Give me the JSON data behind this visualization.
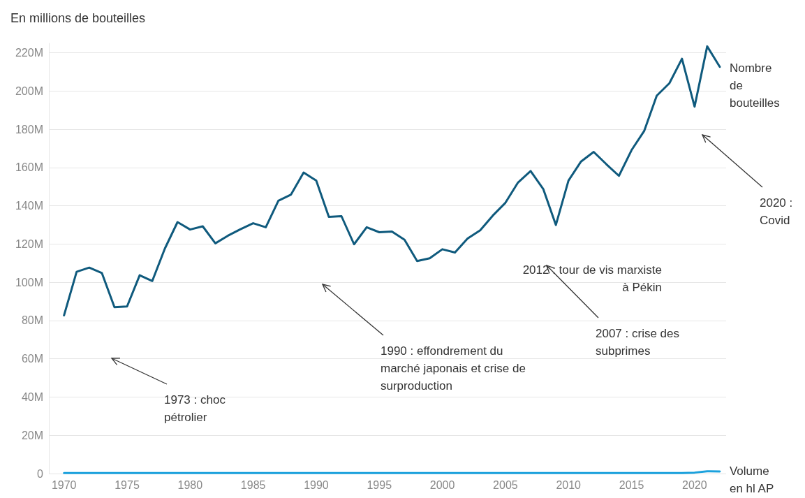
{
  "chart_data": {
    "type": "line",
    "title": "En millions de bouteilles",
    "x": [
      1970,
      1971,
      1972,
      1973,
      1974,
      1975,
      1976,
      1977,
      1978,
      1979,
      1980,
      1981,
      1982,
      1983,
      1984,
      1985,
      1986,
      1987,
      1988,
      1989,
      1990,
      1991,
      1992,
      1993,
      1994,
      1995,
      1996,
      1997,
      1998,
      1999,
      2000,
      2001,
      2002,
      2003,
      2004,
      2005,
      2006,
      2007,
      2008,
      2009,
      2010,
      2011,
      2012,
      2013,
      2014,
      2015,
      2016,
      2017,
      2018,
      2019,
      2020,
      2021,
      2022
    ],
    "series": [
      {
        "name": "Nombre de bouteilles",
        "color": "#0f5a7d",
        "values": [
          82.7,
          105.5,
          107.7,
          104.9,
          87,
          87.4,
          103.7,
          100.7,
          117.7,
          131.5,
          127.6,
          129.3,
          120.4,
          124.4,
          127.8,
          130.9,
          128.8,
          142.7,
          145.9,
          157.4,
          153.2,
          134.2,
          134.6,
          119.9,
          128.8,
          126.2,
          126.6,
          122.3,
          111.1,
          112.6,
          117.3,
          115.6,
          122.9,
          127.2,
          134.9,
          141.6,
          152.2,
          158.2,
          148.8,
          130,
          153.2,
          163.2,
          168.2,
          161.8,
          155.7,
          169.1,
          179.1,
          197.6,
          204.1,
          216.9,
          191.9,
          223.4,
          212.7
        ]
      },
      {
        "name": "Volume en hl AP",
        "color": "#1ba1dd",
        "values": [
          0.3,
          0.3,
          0.3,
          0.3,
          0.3,
          0.3,
          0.3,
          0.3,
          0.3,
          0.3,
          0.3,
          0.3,
          0.3,
          0.3,
          0.3,
          0.3,
          0.3,
          0.3,
          0.3,
          0.3,
          0.3,
          0.3,
          0.3,
          0.3,
          0.3,
          0.3,
          0.3,
          0.3,
          0.3,
          0.3,
          0.3,
          0.3,
          0.3,
          0.3,
          0.3,
          0.3,
          0.3,
          0.3,
          0.3,
          0.3,
          0.3,
          0.3,
          0.3,
          0.3,
          0.3,
          0.3,
          0.3,
          0.3,
          0.3,
          0.3,
          0.5,
          1.2,
          1.1
        ]
      }
    ],
    "xlim": [
      1968.8,
      2022.5
    ],
    "xticks": [
      1970,
      1975,
      1980,
      1985,
      1990,
      1995,
      2000,
      2005,
      2010,
      2015,
      2020
    ],
    "ylim": [
      0,
      225
    ],
    "yticks": [
      0,
      {
        "value": 20,
        "label": "20M"
      },
      {
        "value": 40,
        "label": "40M"
      },
      {
        "value": 60,
        "label": "60M"
      },
      {
        "value": 80,
        "label": "80M"
      },
      {
        "value": 100,
        "label": "100M"
      },
      {
        "value": 120,
        "label": "120M"
      },
      {
        "value": 140,
        "label": "140M"
      },
      {
        "value": 160,
        "label": "160M"
      },
      {
        "value": 180,
        "label": "180M"
      },
      {
        "value": 200,
        "label": "200M"
      },
      {
        "value": 220,
        "label": "220M"
      }
    ],
    "grid": "y",
    "marker": "none",
    "line_style": "solid",
    "annotations": [
      "1973 : choc\npétrolier",
      "1990 : effondrement du\nmarché japonais et crise de\nsurproduction",
      "2007 : crise des\nsubprimes",
      "2020 :\nCovid",
      "2012 : tour de vis marxiste\nà Pékin"
    ]
  }
}
